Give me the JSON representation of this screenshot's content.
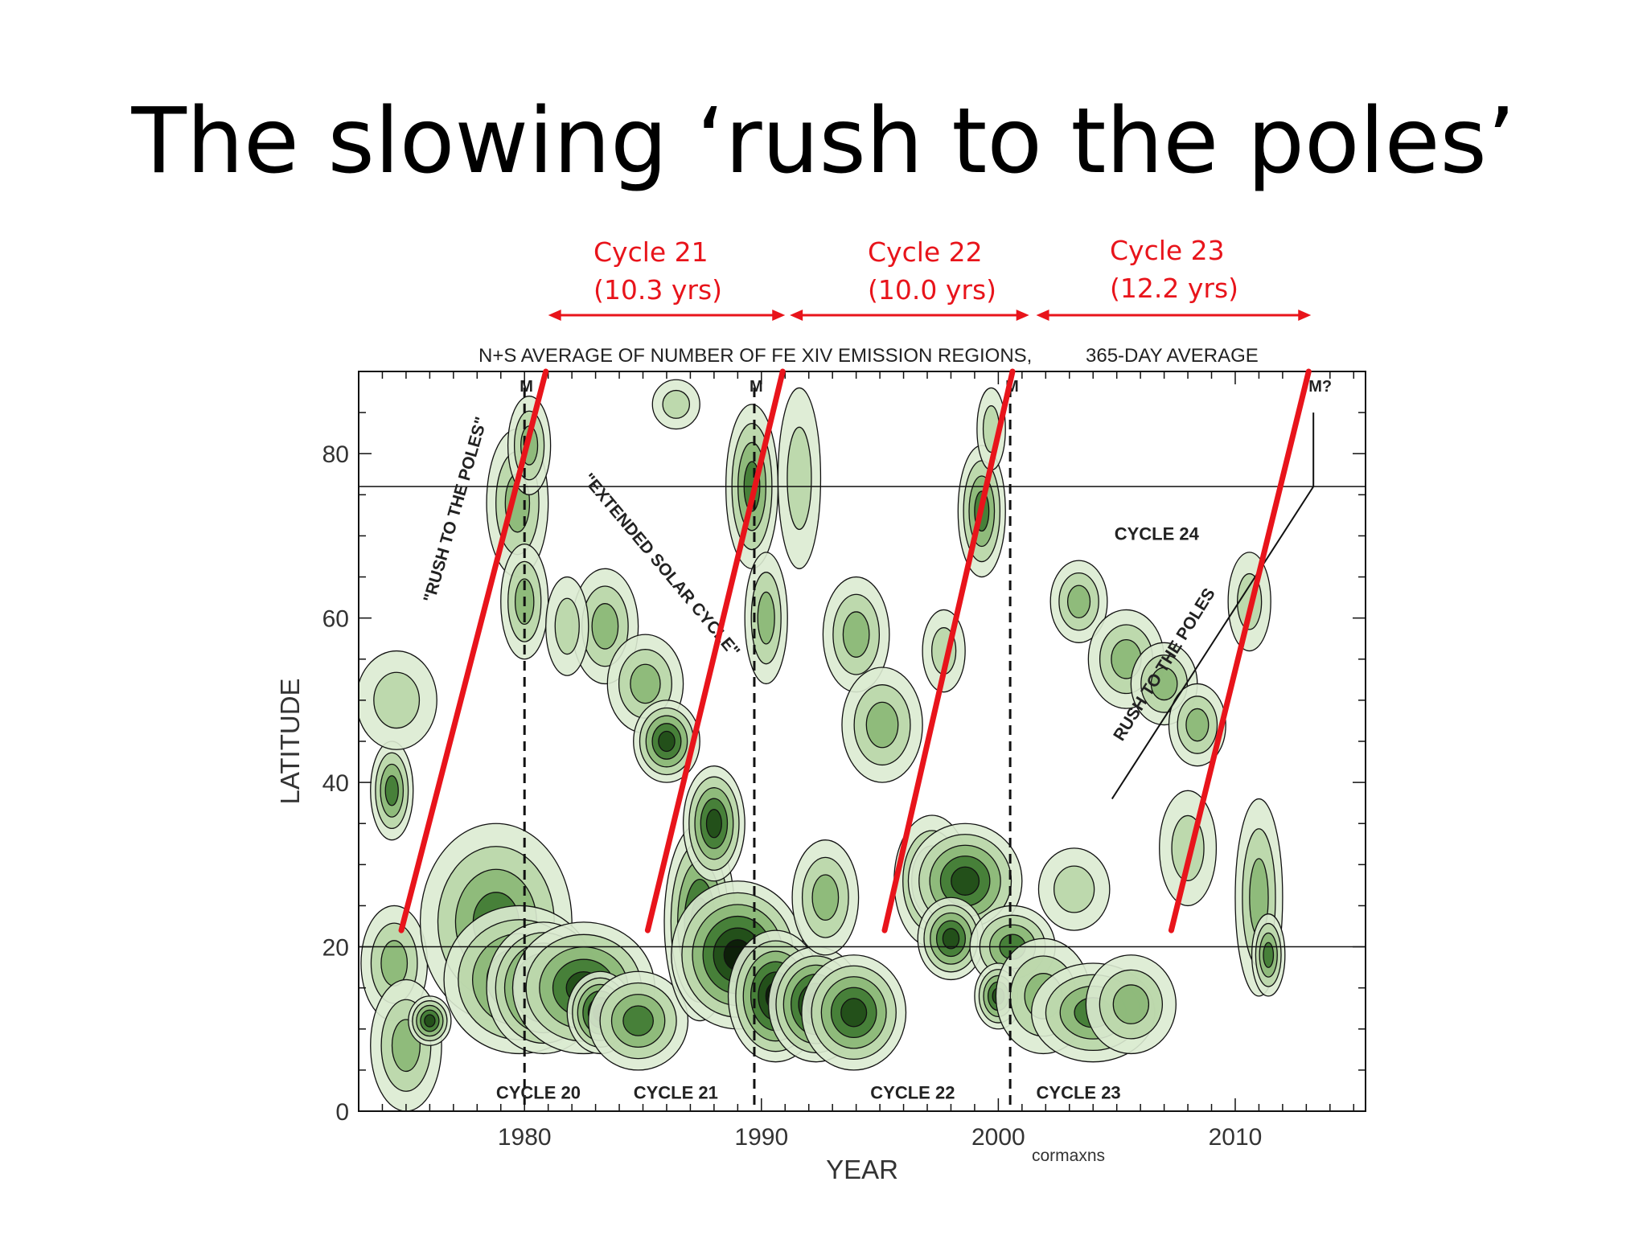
{
  "slide": {
    "title": "The slowing ‘rush to the poles’"
  },
  "cycle_lengths": [
    {
      "name": "Cycle 21",
      "length": "(10.3 yrs)",
      "from": 1981.0,
      "to": 1991.0
    },
    {
      "name": "Cycle 22",
      "length": "(10.0 yrs)",
      "from": 1991.2,
      "to": 2001.3
    },
    {
      "name": "Cycle 23",
      "length": "(12.2 yrs)",
      "from": 2001.6,
      "to": 2013.2
    }
  ],
  "colors": {
    "accent_red": "#e8141b",
    "contour_dark": "#0b1a08",
    "contour_mid": "#3f7a32",
    "contour_light": "#b9d6a8",
    "contour_line": "#111111"
  },
  "chart_data": {
    "type": "heatmap",
    "title": "N+S AVERAGE OF NUMBER OF FE XIV EMISSION REGIONS,",
    "title_right": "365-DAY AVERAGE",
    "xlabel": "YEAR",
    "ylabel": "LATITUDE",
    "xlim": [
      1973,
      2015.5
    ],
    "ylim": [
      0,
      90
    ],
    "x_ticks": [
      1980,
      1990,
      2000,
      2010
    ],
    "y_ticks": [
      0,
      20,
      40,
      60,
      80
    ],
    "credit": "cormaxns",
    "reference_lines_latitude": [
      20,
      76
    ],
    "solar_maxima": [
      {
        "year": 1980.0,
        "label": "M"
      },
      {
        "year": 1989.7,
        "label": "M"
      },
      {
        "year": 2000.5,
        "label": "M"
      },
      {
        "year": 2013.3,
        "label": "M?"
      }
    ],
    "cycle_labels": [
      {
        "label": "CYCLE 20",
        "year": 1978.8,
        "lat": 1.5
      },
      {
        "label": "CYCLE 21",
        "year": 1984.6,
        "lat": 1.5
      },
      {
        "label": "CYCLE 22",
        "year": 1994.6,
        "lat": 1.5
      },
      {
        "label": "CYCLE 23",
        "year": 2001.6,
        "lat": 1.5
      },
      {
        "label": "CYCLE 24",
        "year": 2004.9,
        "lat": 69.5
      }
    ],
    "annotations": [
      {
        "text": "\"RUSH TO THE POLES\"",
        "year": 1977.3,
        "lat": 73
      },
      {
        "text": "\"EXTENDED SOLAR CYCLE\"",
        "year": 1985.6,
        "lat": 66
      },
      {
        "text": "RUSH TO THE POLES",
        "year": 2007.2,
        "lat": 54
      }
    ],
    "rush_trend_lines": [
      {
        "x": [
          1974.8,
          1980.9
        ],
        "y": [
          22,
          90
        ]
      },
      {
        "x": [
          1985.2,
          1990.9
        ],
        "y": [
          22,
          90
        ]
      },
      {
        "x": [
          1995.2,
          2000.6
        ],
        "y": [
          22,
          90
        ]
      },
      {
        "x": [
          2007.3,
          2013.1
        ],
        "y": [
          22,
          90
        ]
      }
    ],
    "guide_lines": [
      {
        "x": [
          2004.8,
          2013.3
        ],
        "y": [
          38,
          76
        ]
      },
      {
        "x": [
          2013.3,
          2013.3
        ],
        "y": [
          76,
          85
        ]
      }
    ],
    "emission_regions": [
      {
        "year": 1974.5,
        "lat": 18,
        "rx": 1.4,
        "ry": 7,
        "level": 2
      },
      {
        "year": 1975.0,
        "lat": 8,
        "rx": 1.5,
        "ry": 8,
        "level": 2
      },
      {
        "year": 1976.0,
        "lat": 11,
        "rx": 0.9,
        "ry": 3,
        "level": 4
      },
      {
        "year": 1974.4,
        "lat": 39,
        "rx": 0.9,
        "ry": 6,
        "level": 3
      },
      {
        "year": 1974.6,
        "lat": 50,
        "rx": 1.7,
        "ry": 6,
        "level": 1
      },
      {
        "year": 1979.7,
        "lat": 74,
        "rx": 1.3,
        "ry": 9,
        "level": 2
      },
      {
        "year": 1980.2,
        "lat": 81,
        "rx": 0.9,
        "ry": 6,
        "level": 2
      },
      {
        "year": 1980.0,
        "lat": 62,
        "rx": 1.0,
        "ry": 7,
        "level": 2
      },
      {
        "year": 1978.8,
        "lat": 23,
        "rx": 3.2,
        "ry": 12,
        "level": 3
      },
      {
        "year": 1979.8,
        "lat": 16,
        "rx": 3.2,
        "ry": 9,
        "level": 4
      },
      {
        "year": 1980.8,
        "lat": 15,
        "rx": 2.4,
        "ry": 8,
        "level": 5
      },
      {
        "year": 1982.5,
        "lat": 15,
        "rx": 3.0,
        "ry": 8,
        "level": 4
      },
      {
        "year": 1983.2,
        "lat": 12,
        "rx": 1.4,
        "ry": 5,
        "level": 5
      },
      {
        "year": 1984.8,
        "lat": 11,
        "rx": 2.1,
        "ry": 6,
        "level": 3
      },
      {
        "year": 1983.4,
        "lat": 59,
        "rx": 1.4,
        "ry": 7,
        "level": 2
      },
      {
        "year": 1985.1,
        "lat": 52,
        "rx": 1.6,
        "ry": 6,
        "level": 2
      },
      {
        "year": 1986.0,
        "lat": 45,
        "rx": 1.4,
        "ry": 5,
        "level": 4
      },
      {
        "year": 1981.8,
        "lat": 59,
        "rx": 0.9,
        "ry": 6,
        "level": 1
      },
      {
        "year": 1986.4,
        "lat": 86,
        "rx": 1.0,
        "ry": 3,
        "level": 1
      },
      {
        "year": 1987.4,
        "lat": 23,
        "rx": 1.5,
        "ry": 12,
        "level": 4
      },
      {
        "year": 1988.0,
        "lat": 35,
        "rx": 1.3,
        "ry": 7,
        "level": 4
      },
      {
        "year": 1989.0,
        "lat": 19,
        "rx": 2.8,
        "ry": 9,
        "level": 5
      },
      {
        "year": 1990.6,
        "lat": 14,
        "rx": 2.0,
        "ry": 8,
        "level": 5
      },
      {
        "year": 1992.3,
        "lat": 13,
        "rx": 2.0,
        "ry": 7,
        "level": 5
      },
      {
        "year": 1993.9,
        "lat": 12,
        "rx": 2.2,
        "ry": 7,
        "level": 4
      },
      {
        "year": 1992.7,
        "lat": 26,
        "rx": 1.4,
        "ry": 7,
        "level": 2
      },
      {
        "year": 1989.6,
        "lat": 76,
        "rx": 1.1,
        "ry": 10,
        "level": 3
      },
      {
        "year": 1990.2,
        "lat": 60,
        "rx": 0.9,
        "ry": 8,
        "level": 2
      },
      {
        "year": 1991.6,
        "lat": 77,
        "rx": 0.9,
        "ry": 11,
        "level": 1
      },
      {
        "year": 1994.0,
        "lat": 58,
        "rx": 1.4,
        "ry": 7,
        "level": 2
      },
      {
        "year": 1995.1,
        "lat": 47,
        "rx": 1.7,
        "ry": 7,
        "level": 2
      },
      {
        "year": 1997.2,
        "lat": 28,
        "rx": 1.6,
        "ry": 8,
        "level": 3
      },
      {
        "year": 1998.6,
        "lat": 28,
        "rx": 2.4,
        "ry": 7,
        "level": 4
      },
      {
        "year": 1998.0,
        "lat": 21,
        "rx": 1.4,
        "ry": 5,
        "level": 4
      },
      {
        "year": 2000.6,
        "lat": 20,
        "rx": 1.8,
        "ry": 5,
        "level": 3
      },
      {
        "year": 2000.0,
        "lat": 14,
        "rx": 1.0,
        "ry": 4,
        "level": 4
      },
      {
        "year": 2001.9,
        "lat": 14,
        "rx": 2.0,
        "ry": 7,
        "level": 2
      },
      {
        "year": 2004.0,
        "lat": 12,
        "rx": 2.6,
        "ry": 6,
        "level": 3
      },
      {
        "year": 2005.6,
        "lat": 13,
        "rx": 1.9,
        "ry": 6,
        "level": 2
      },
      {
        "year": 2003.2,
        "lat": 27,
        "rx": 1.5,
        "ry": 5,
        "level": 1
      },
      {
        "year": 1999.3,
        "lat": 73,
        "rx": 1.0,
        "ry": 8,
        "level": 3
      },
      {
        "year": 1999.7,
        "lat": 83,
        "rx": 0.6,
        "ry": 5,
        "level": 1
      },
      {
        "year": 1997.7,
        "lat": 56,
        "rx": 0.9,
        "ry": 5,
        "level": 1
      },
      {
        "year": 2003.4,
        "lat": 62,
        "rx": 1.2,
        "ry": 5,
        "level": 2
      },
      {
        "year": 2005.4,
        "lat": 55,
        "rx": 1.6,
        "ry": 6,
        "level": 2
      },
      {
        "year": 2007.0,
        "lat": 52,
        "rx": 1.4,
        "ry": 5,
        "level": 2
      },
      {
        "year": 2008.4,
        "lat": 47,
        "rx": 1.2,
        "ry": 5,
        "level": 2
      },
      {
        "year": 2010.6,
        "lat": 62,
        "rx": 0.9,
        "ry": 6,
        "level": 1
      },
      {
        "year": 2011.0,
        "lat": 26,
        "rx": 1.0,
        "ry": 12,
        "level": 2
      },
      {
        "year": 2011.4,
        "lat": 19,
        "rx": 0.7,
        "ry": 5,
        "level": 3
      },
      {
        "year": 2008.0,
        "lat": 32,
        "rx": 1.2,
        "ry": 7,
        "level": 1
      }
    ]
  }
}
